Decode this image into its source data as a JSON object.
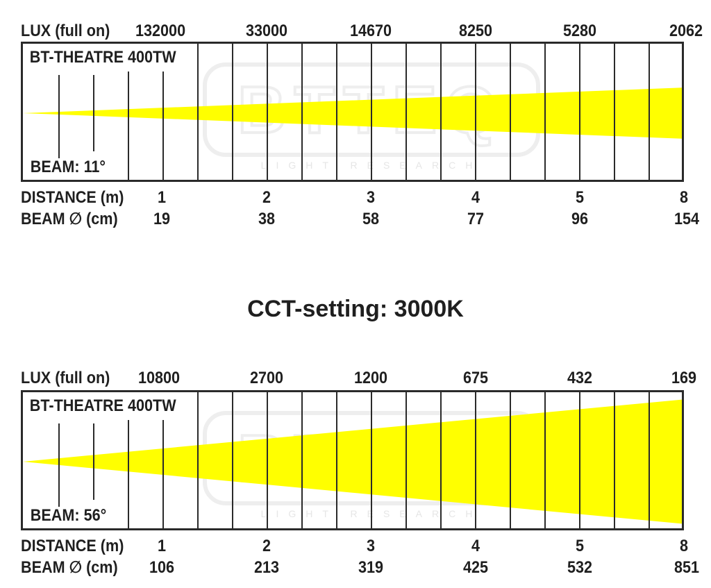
{
  "heading": "CCT-setting: 3000K",
  "watermark": {
    "logo": "BTTEQ",
    "tagline": "LIGHT RESEARCH"
  },
  "colors": {
    "beam": "#ffff00",
    "frame": "#2a2a2a",
    "watermark": "#eeeeee"
  },
  "panels": [
    {
      "model": "BT-THEATRE 400TW",
      "beam_label": "BEAM: 11°",
      "beam_angle_deg": 11,
      "lux_label": "LUX (full on)",
      "lux": [
        "132000",
        "33000",
        "14670",
        "8250",
        "5280",
        "2062"
      ],
      "distance_label": "DISTANCE (m)",
      "distance": [
        "1",
        "2",
        "3",
        "4",
        "5",
        "8"
      ],
      "diameter_label": "BEAM ∅ (cm)",
      "diameter": [
        "19",
        "38",
        "58",
        "77",
        "96",
        "154"
      ]
    },
    {
      "model": "BT-THEATRE 400TW",
      "beam_label": "BEAM: 56°",
      "beam_angle_deg": 56,
      "lux_label": "LUX (full on)",
      "lux": [
        "10800",
        "2700",
        "1200",
        "675",
        "432",
        "169"
      ],
      "distance_label": "DISTANCE (m)",
      "distance": [
        "1",
        "2",
        "3",
        "4",
        "5",
        "8"
      ],
      "diameter_label": "BEAM ∅ (cm)",
      "diameter": [
        "106",
        "213",
        "319",
        "425",
        "532",
        "851"
      ]
    }
  ]
}
